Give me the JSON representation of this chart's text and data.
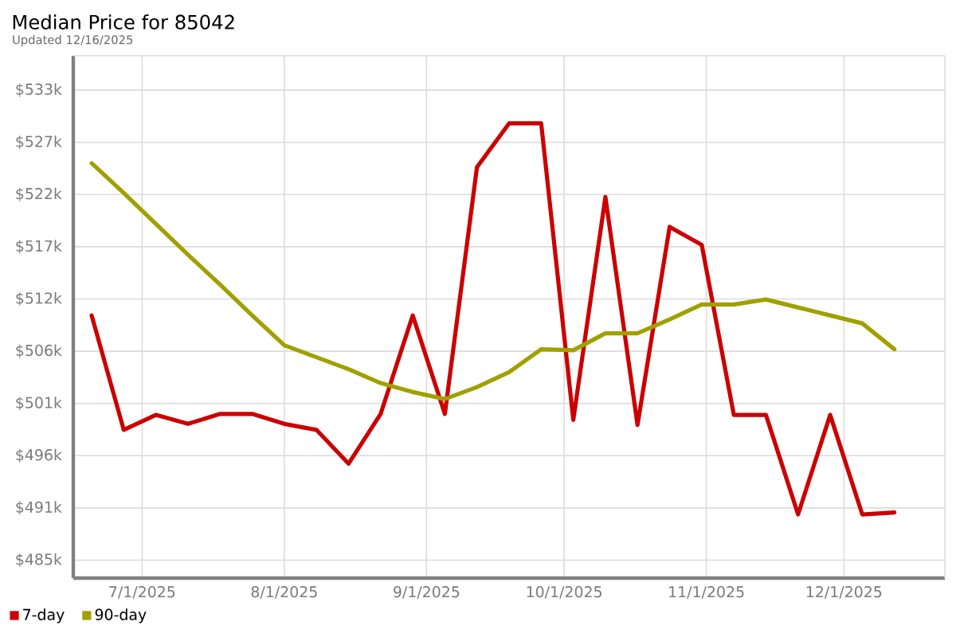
{
  "chart_data": {
    "type": "line",
    "title": "Median Price for 85042",
    "subtitle": "Updated 12/16/2025",
    "x": [
      "2025-06-20",
      "2025-06-27",
      "2025-07-04",
      "2025-07-11",
      "2025-07-18",
      "2025-07-25",
      "2025-08-01",
      "2025-08-08",
      "2025-08-15",
      "2025-08-22",
      "2025-08-29",
      "2025-09-05",
      "2025-09-12",
      "2025-09-19",
      "2025-09-26",
      "2025-10-03",
      "2025-10-10",
      "2025-10-17",
      "2025-10-24",
      "2025-10-31",
      "2025-11-07",
      "2025-11-14",
      "2025-11-21",
      "2025-11-28",
      "2025-12-05",
      "2025-12-12"
    ],
    "series": [
      {
        "name": "7-day",
        "color": "#cc0000",
        "values": [
          509.9,
          498.4,
          499.9,
          499.0,
          500.0,
          500.0,
          499.0,
          498.4,
          495.0,
          500.0,
          509.9,
          500.0,
          524.8,
          529.2,
          529.2,
          499.4,
          521.8,
          498.9,
          518.8,
          517.0,
          499.9,
          499.9,
          489.9,
          499.9,
          489.9,
          490.1
        ]
      },
      {
        "name": "90-day",
        "color": "#a0a000",
        "values": [
          525.2,
          522.2,
          519.1,
          516.0,
          513.0,
          509.9,
          506.9,
          505.7,
          504.5,
          503.1,
          502.2,
          501.5,
          502.7,
          504.2,
          506.5,
          506.4,
          508.1,
          508.1,
          509.5,
          511.0,
          511.0,
          511.5,
          510.7,
          509.9,
          509.1,
          506.5
        ]
      }
    ],
    "xlim": [
      "2025-06-16",
      "2025-12-23"
    ],
    "xticks": [
      {
        "value": "2025-07-01",
        "label": "7/1/2025"
      },
      {
        "value": "2025-08-01",
        "label": "8/1/2025"
      },
      {
        "value": "2025-09-01",
        "label": "9/1/2025"
      },
      {
        "value": "2025-10-01",
        "label": "10/1/2025"
      },
      {
        "value": "2025-11-01",
        "label": "11/1/2025"
      },
      {
        "value": "2025-12-01",
        "label": "12/1/2025"
      }
    ],
    "ylim": [
      483.5,
      536.0
    ],
    "yticks": [
      {
        "value": 485.3,
        "label": "$485k"
      },
      {
        "value": 490.55,
        "label": "$491k"
      },
      {
        "value": 495.8,
        "label": "$496k"
      },
      {
        "value": 501.05,
        "label": "$501k"
      },
      {
        "value": 506.3,
        "label": "$506k"
      },
      {
        "value": 511.55,
        "label": "$512k"
      },
      {
        "value": 516.8,
        "label": "$517k"
      },
      {
        "value": 522.05,
        "label": "$522k"
      },
      {
        "value": 527.3,
        "label": "$527k"
      },
      {
        "value": 532.55,
        "label": "$533k"
      }
    ],
    "grid": true,
    "legend": "bottom left",
    "marker": "none",
    "line_style": "solid"
  }
}
